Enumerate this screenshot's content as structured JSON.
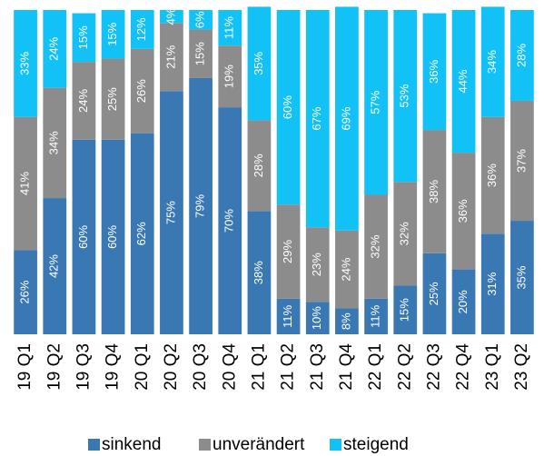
{
  "chart_data": {
    "type": "stacked_bar",
    "categories": [
      "19 Q1",
      "19 Q2",
      "19 Q3",
      "19 Q4",
      "20 Q1",
      "20 Q2",
      "20 Q3",
      "20 Q4",
      "21 Q1",
      "21 Q2",
      "21 Q3",
      "21 Q4",
      "22 Q1",
      "22 Q2",
      "22 Q3",
      "22 Q4",
      "23 Q1",
      "23 Q2"
    ],
    "ylim": [
      0,
      100
    ],
    "legend": "bottom",
    "series": [
      {
        "name": "sinkend",
        "color": "#3a78b4",
        "values": [
          26,
          42,
          60,
          60,
          62,
          75,
          79,
          70,
          38,
          11,
          10,
          8,
          11,
          15,
          25,
          20,
          31,
          35
        ],
        "value_labels": [
          "26%",
          "42%",
          "60%",
          "60%",
          "62%",
          "75%",
          "79%",
          "70%",
          "38%",
          "11%",
          "10%",
          "8%",
          "11%",
          "15%",
          "25%",
          "20%",
          "31%",
          "35%"
        ]
      },
      {
        "name": "unverändert",
        "color": "#8c8c8c",
        "values": [
          41,
          34,
          24,
          25,
          26,
          21,
          15,
          19,
          28,
          29,
          23,
          24,
          32,
          32,
          38,
          36,
          36,
          37
        ],
        "value_labels": [
          "41%",
          "34%",
          "24%",
          "25%",
          "26%",
          "21%",
          "15%",
          "19%",
          "28%",
          "29%",
          "23%",
          "24%",
          "32%",
          "32%",
          "38%",
          "36%",
          "36%",
          "37%"
        ]
      },
      {
        "name": "steigend",
        "color": "#12c1f5",
        "values": [
          33,
          24,
          15,
          15,
          12,
          4,
          6,
          11,
          35,
          60,
          67,
          69,
          57,
          53,
          36,
          44,
          34,
          28
        ],
        "value_labels": [
          "33%",
          "24%",
          "15%",
          "15%",
          "12%",
          "4%",
          "6%",
          "11%",
          "35%",
          "60%",
          "67%",
          "69%",
          "57%",
          "53%",
          "36%",
          "44%",
          "34%",
          "28%"
        ]
      }
    ]
  }
}
